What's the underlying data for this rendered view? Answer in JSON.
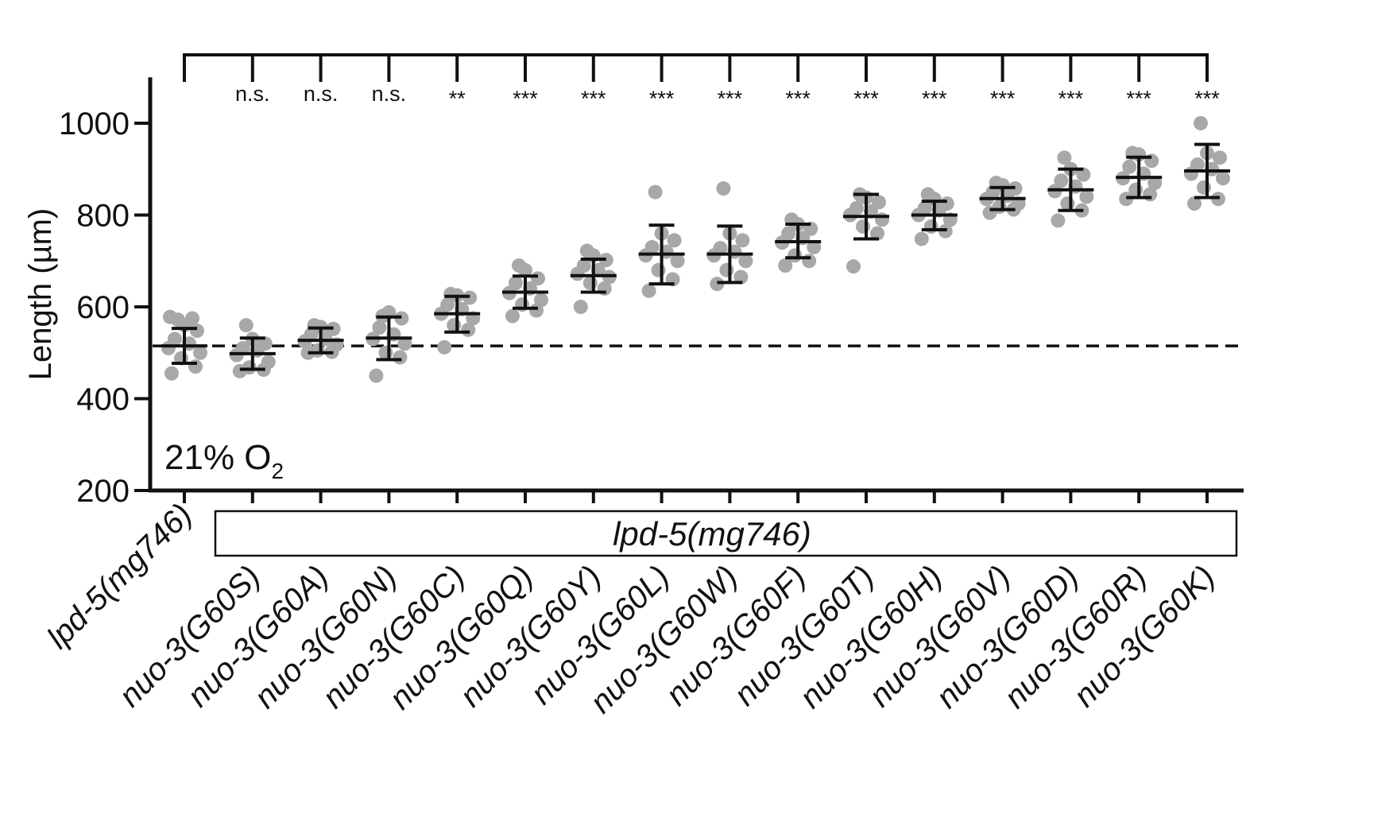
{
  "chart_data": {
    "type": "scatter",
    "ylabel": "Length (µm)",
    "ylim": [
      200,
      1100
    ],
    "yticks": [
      200,
      400,
      600,
      800,
      1000
    ],
    "condition": {
      "prefix": "21% O",
      "subscript": "2"
    },
    "group_label": "lpd-5(mg746)",
    "reference_line": 515,
    "categories": [
      {
        "label": "lpd-5(mg746)",
        "mean": 515,
        "sd_low": 477,
        "sd_high": 553,
        "sig": "",
        "points": [
          455,
          470,
          488,
          500,
          510,
          520,
          530,
          548,
          560,
          572,
          575,
          578
        ]
      },
      {
        "label": "nuo-3(G60S)",
        "mean": 498,
        "sd_low": 464,
        "sd_high": 532,
        "sig": "n.s.",
        "points": [
          460,
          463,
          468,
          480,
          495,
          505,
          510,
          520,
          530,
          560
        ]
      },
      {
        "label": "nuo-3(G60A)",
        "mean": 527,
        "sd_low": 500,
        "sd_high": 554,
        "sig": "n.s.",
        "points": [
          500,
          502,
          505,
          518,
          525,
          530,
          540,
          552,
          556,
          560
        ]
      },
      {
        "label": "nuo-3(G60N)",
        "mean": 532,
        "sd_low": 485,
        "sd_high": 578,
        "sig": "n.s.",
        "points": [
          450,
          490,
          500,
          520,
          530,
          540,
          555,
          575,
          588,
          580
        ]
      },
      {
        "label": "nuo-3(G60C)",
        "mean": 585,
        "sd_low": 545,
        "sd_high": 623,
        "sig": "**",
        "points": [
          512,
          550,
          560,
          575,
          585,
          595,
          605,
          620,
          625,
          628
        ]
      },
      {
        "label": "nuo-3(G60Q)",
        "mean": 632,
        "sd_low": 597,
        "sd_high": 667,
        "sig": "***",
        "points": [
          580,
          592,
          605,
          615,
          630,
          640,
          652,
          662,
          680,
          690
        ]
      },
      {
        "label": "nuo-3(G60Y)",
        "mean": 668,
        "sd_low": 632,
        "sd_high": 704,
        "sig": "***",
        "points": [
          600,
          640,
          652,
          665,
          672,
          680,
          690,
          702,
          712,
          722
        ]
      },
      {
        "label": "nuo-3(G60L)",
        "mean": 715,
        "sd_low": 650,
        "sd_high": 778,
        "sig": "***",
        "points": [
          635,
          660,
          680,
          700,
          712,
          720,
          730,
          745,
          760,
          850
        ]
      },
      {
        "label": "nuo-3(G60W)",
        "mean": 715,
        "sd_low": 653,
        "sd_high": 776,
        "sig": "***",
        "points": [
          650,
          665,
          680,
          700,
          712,
          720,
          728,
          745,
          760,
          858
        ]
      },
      {
        "label": "nuo-3(G60F)",
        "mean": 742,
        "sd_low": 707,
        "sd_high": 780,
        "sig": "***",
        "points": [
          690,
          700,
          712,
          730,
          740,
          750,
          760,
          770,
          780,
          790
        ]
      },
      {
        "label": "nuo-3(G60T)",
        "mean": 797,
        "sd_low": 748,
        "sd_high": 845,
        "sig": "***",
        "points": [
          688,
          760,
          775,
          790,
          800,
          808,
          815,
          828,
          838,
          845
        ]
      },
      {
        "label": "nuo-3(G60H)",
        "mean": 800,
        "sd_low": 768,
        "sd_high": 830,
        "sig": "***",
        "points": [
          748,
          765,
          775,
          790,
          800,
          810,
          815,
          825,
          835,
          845
        ]
      },
      {
        "label": "nuo-3(G60V)",
        "mean": 836,
        "sd_low": 812,
        "sd_high": 860,
        "sig": "***",
        "points": [
          805,
          812,
          818,
          825,
          835,
          842,
          850,
          858,
          865,
          870
        ]
      },
      {
        "label": "nuo-3(G60D)",
        "mean": 855,
        "sd_low": 810,
        "sd_high": 900,
        "sig": "***",
        "points": [
          788,
          810,
          825,
          840,
          852,
          862,
          875,
          888,
          900,
          925
        ]
      },
      {
        "label": "nuo-3(G60R)",
        "mean": 882,
        "sd_low": 838,
        "sd_high": 926,
        "sig": "***",
        "points": [
          835,
          845,
          855,
          870,
          880,
          890,
          905,
          918,
          932,
          935
        ]
      },
      {
        "label": "nuo-3(G60K)",
        "mean": 896,
        "sd_low": 838,
        "sd_high": 954,
        "sig": "***",
        "points": [
          825,
          835,
          860,
          880,
          890,
          900,
          910,
          925,
          935,
          1000
        ]
      }
    ]
  }
}
